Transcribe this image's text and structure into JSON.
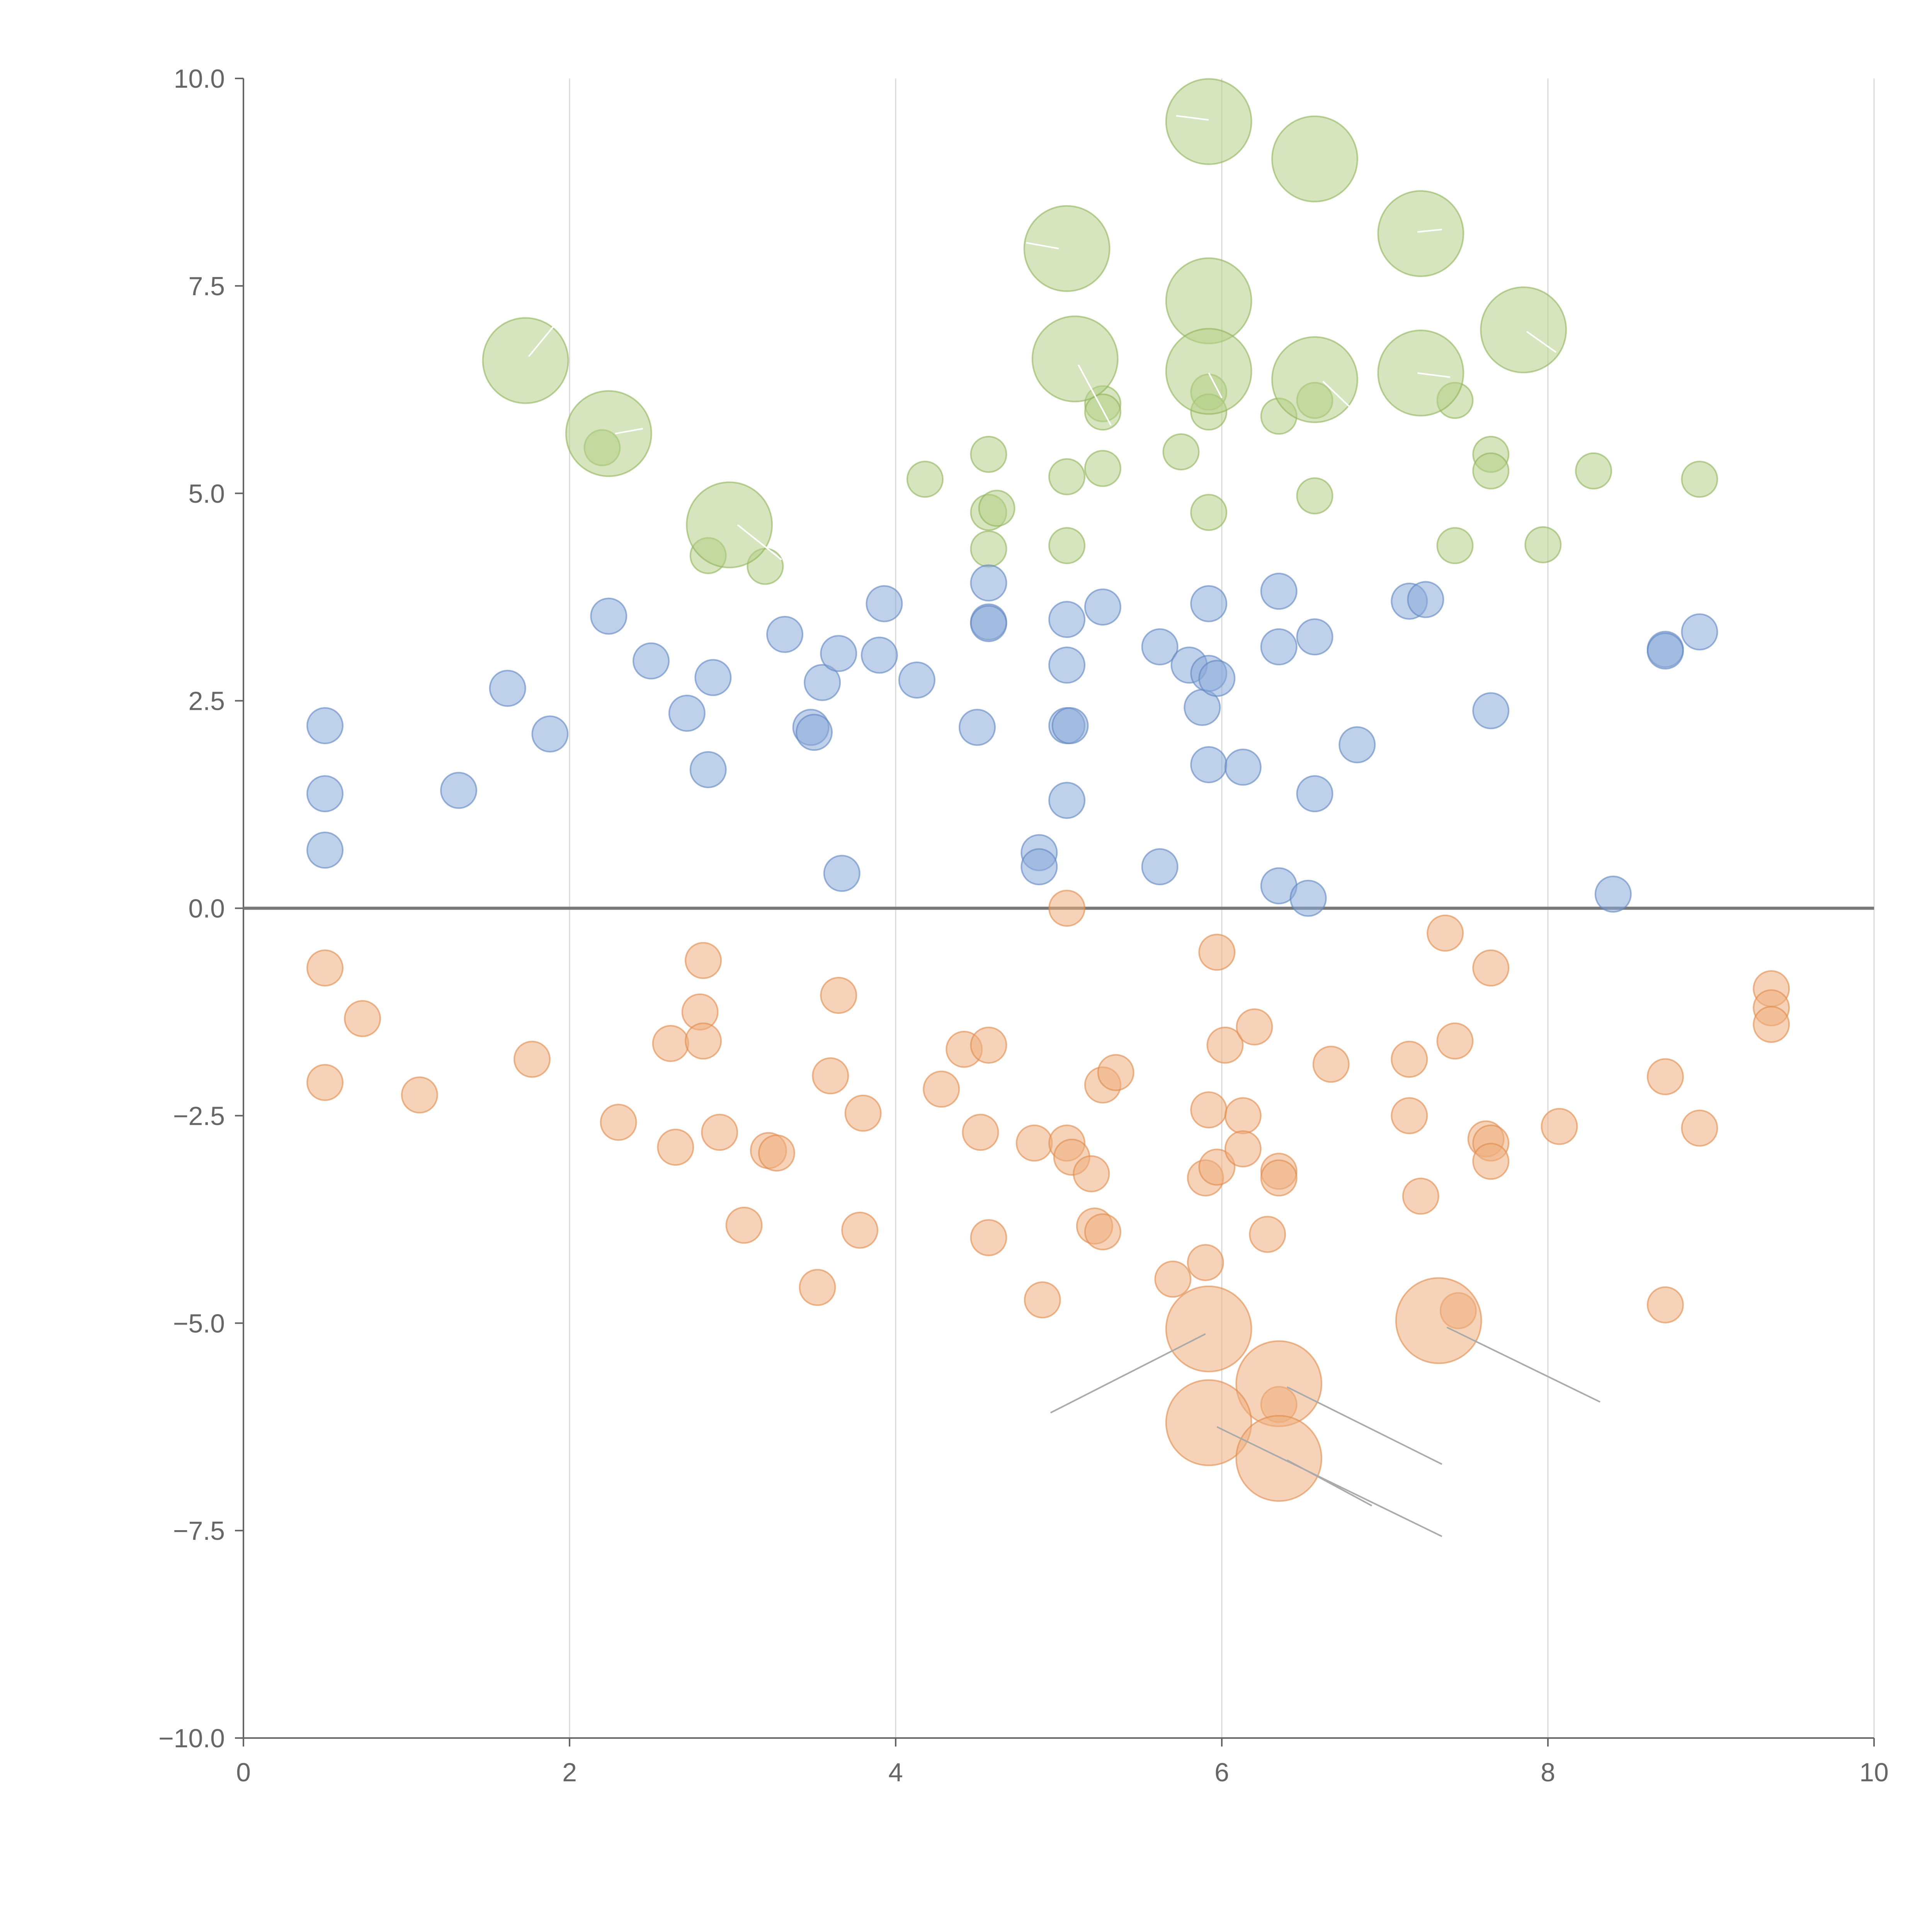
{
  "chart_data": {
    "type": "scatter",
    "title": "",
    "xlabel": "",
    "ylabel": "",
    "xlim": [
      0,
      10
    ],
    "ylim": [
      -10,
      10
    ],
    "x_ticks": [
      0,
      2,
      4,
      6,
      8,
      10
    ],
    "y_ticks": [
      10,
      7.5,
      5,
      2.5,
      0,
      -2.5,
      -5,
      -7.5,
      -10
    ],
    "x_tick_labels": [
      "0",
      "2",
      "4",
      "6",
      "8",
      "10"
    ],
    "y_tick_labels": [
      "10.0",
      "7.5",
      "5.0",
      "2.5",
      "0.0",
      "−2.5",
      "−5.0",
      "−7.5",
      "−10.0"
    ],
    "grid": "vertical",
    "zero_line": true,
    "colors": {
      "green_fill": "#b5cf87",
      "green_stroke": "#8fb35a",
      "blue_fill": "#8aaad8",
      "blue_stroke": "#5f86c0",
      "orange_fill": "#efae7d",
      "orange_stroke": "#e08a4b",
      "leader_light": "#ffffff",
      "leader_dark": "#aaaaaa"
    },
    "series": [
      {
        "name": "green",
        "color": "green",
        "points": [
          [
            2.2,
            5.55,
            1
          ],
          [
            2.85,
            4.25,
            1
          ],
          [
            3.2,
            4.12,
            1
          ],
          [
            4.18,
            5.17,
            1
          ],
          [
            4.57,
            5.47,
            1
          ],
          [
            4.57,
            4.77,
            1
          ],
          [
            4.62,
            4.82,
            1
          ],
          [
            4.57,
            4.33,
            1
          ],
          [
            5.05,
            5.2,
            1
          ],
          [
            5.05,
            4.37,
            1
          ],
          [
            5.27,
            6.08,
            1
          ],
          [
            5.27,
            5.98,
            1
          ],
          [
            5.27,
            5.3,
            1
          ],
          [
            5.75,
            5.5,
            1
          ],
          [
            5.92,
            6.22,
            1
          ],
          [
            5.92,
            5.98,
            1
          ],
          [
            5.92,
            4.77,
            1
          ],
          [
            6.35,
            5.93,
            1
          ],
          [
            6.57,
            6.12,
            1
          ],
          [
            6.57,
            4.97,
            1
          ],
          [
            7.43,
            6.12,
            1
          ],
          [
            7.43,
            4.37,
            1
          ],
          [
            7.65,
            5.47,
            1
          ],
          [
            7.65,
            5.27,
            1
          ],
          [
            7.97,
            4.38,
            1
          ],
          [
            8.28,
            5.27,
            1
          ],
          [
            8.93,
            5.17,
            1
          ],
          [
            5.92,
            9.48,
            2.4
          ],
          [
            6.57,
            9.03,
            2.4
          ],
          [
            5.05,
            7.95,
            2.4
          ],
          [
            7.22,
            8.13,
            2.4
          ],
          [
            5.92,
            7.32,
            2.4
          ],
          [
            7.85,
            6.97,
            2.4
          ],
          [
            1.73,
            6.6,
            2.4
          ],
          [
            5.1,
            6.62,
            2.4
          ],
          [
            5.92,
            6.47,
            2.4
          ],
          [
            6.57,
            6.37,
            2.4
          ],
          [
            7.22,
            6.45,
            2.4
          ],
          [
            2.24,
            5.72,
            2.4
          ],
          [
            2.98,
            4.62,
            2.4
          ]
        ]
      },
      {
        "name": "blue",
        "color": "blue",
        "points": [
          [
            0.5,
            2.2,
            1
          ],
          [
            0.5,
            1.38,
            1
          ],
          [
            0.5,
            0.7,
            1
          ],
          [
            1.32,
            1.42,
            1
          ],
          [
            1.62,
            2.65,
            1
          ],
          [
            1.88,
            2.1,
            1
          ],
          [
            2.24,
            3.52,
            1
          ],
          [
            2.5,
            2.98,
            1
          ],
          [
            2.72,
            2.35,
            1
          ],
          [
            2.85,
            1.67,
            1
          ],
          [
            2.88,
            2.78,
            1
          ],
          [
            3.32,
            3.3,
            1
          ],
          [
            3.48,
            2.18,
            1
          ],
          [
            3.5,
            2.12,
            1
          ],
          [
            3.55,
            2.72,
            1
          ],
          [
            3.65,
            3.07,
            1
          ],
          [
            3.67,
            0.42,
            1
          ],
          [
            3.9,
            3.05,
            1
          ],
          [
            3.93,
            3.67,
            1
          ],
          [
            4.13,
            2.75,
            1
          ],
          [
            4.5,
            2.18,
            1
          ],
          [
            4.57,
            3.92,
            1
          ],
          [
            4.57,
            3.45,
            1
          ],
          [
            4.57,
            3.43,
            1
          ],
          [
            4.88,
            0.67,
            1
          ],
          [
            4.88,
            0.5,
            1
          ],
          [
            5.05,
            3.48,
            1
          ],
          [
            5.05,
            2.93,
            1
          ],
          [
            5.05,
            2.2,
            1
          ],
          [
            5.07,
            2.2,
            1
          ],
          [
            5.05,
            1.3,
            1
          ],
          [
            5.27,
            3.63,
            1
          ],
          [
            5.62,
            3.15,
            1
          ],
          [
            5.62,
            0.5,
            1
          ],
          [
            5.8,
            2.93,
            1
          ],
          [
            5.88,
            2.42,
            1
          ],
          [
            5.92,
            3.67,
            1
          ],
          [
            5.92,
            2.83,
            1
          ],
          [
            5.97,
            2.77,
            1
          ],
          [
            5.92,
            1.73,
            1
          ],
          [
            6.13,
            1.7,
            1
          ],
          [
            6.35,
            3.82,
            1
          ],
          [
            6.35,
            3.15,
            1
          ],
          [
            6.35,
            0.27,
            1
          ],
          [
            6.53,
            0.12,
            1
          ],
          [
            6.57,
            3.27,
            1
          ],
          [
            6.57,
            1.38,
            1
          ],
          [
            6.83,
            1.97,
            1
          ],
          [
            7.15,
            3.7,
            1
          ],
          [
            7.25,
            3.72,
            1
          ],
          [
            7.65,
            2.38,
            1
          ],
          [
            8.4,
            0.17,
            1
          ],
          [
            8.72,
            3.12,
            1
          ],
          [
            8.72,
            3.1,
            1
          ],
          [
            8.93,
            3.33,
            1
          ]
        ]
      },
      {
        "name": "orange",
        "color": "orange",
        "points": [
          [
            0.5,
            -0.72,
            1
          ],
          [
            0.5,
            -2.1,
            1
          ],
          [
            0.73,
            -1.33,
            1
          ],
          [
            1.08,
            -2.25,
            1
          ],
          [
            1.77,
            -1.82,
            1
          ],
          [
            2.3,
            -2.58,
            1
          ],
          [
            2.62,
            -1.63,
            1
          ],
          [
            2.65,
            -2.88,
            1
          ],
          [
            2.8,
            -1.25,
            1
          ],
          [
            2.82,
            -0.63,
            1
          ],
          [
            2.82,
            -1.6,
            1
          ],
          [
            2.92,
            -2.7,
            1
          ],
          [
            3.07,
            -3.82,
            1
          ],
          [
            3.22,
            -2.92,
            1
          ],
          [
            3.27,
            -2.95,
            1
          ],
          [
            3.52,
            -4.57,
            1
          ],
          [
            3.6,
            -2.02,
            1
          ],
          [
            3.65,
            -1.05,
            1
          ],
          [
            3.78,
            -3.88,
            1
          ],
          [
            3.8,
            -2.47,
            1
          ],
          [
            4.28,
            -2.18,
            1
          ],
          [
            4.42,
            -1.7,
            1
          ],
          [
            4.52,
            -2.7,
            1
          ],
          [
            4.57,
            -1.65,
            1
          ],
          [
            4.57,
            -3.97,
            1
          ],
          [
            4.85,
            -2.83,
            1
          ],
          [
            4.9,
            -4.72,
            1
          ],
          [
            5.05,
            0.0,
            1
          ],
          [
            5.05,
            -2.83,
            1
          ],
          [
            5.08,
            -3.0,
            1
          ],
          [
            5.2,
            -3.2,
            1
          ],
          [
            5.22,
            -3.83,
            1
          ],
          [
            5.27,
            -3.9,
            1
          ],
          [
            5.27,
            -2.13,
            1
          ],
          [
            5.35,
            -1.98,
            1
          ],
          [
            5.7,
            -4.47,
            1
          ],
          [
            5.9,
            -4.27,
            1
          ],
          [
            5.9,
            -3.25,
            1
          ],
          [
            5.92,
            -2.43,
            1
          ],
          [
            5.97,
            -0.53,
            1
          ],
          [
            5.97,
            -3.12,
            1
          ],
          [
            6.02,
            -1.65,
            1
          ],
          [
            6.13,
            -2.5,
            1
          ],
          [
            6.13,
            -2.9,
            1
          ],
          [
            6.2,
            -1.43,
            1
          ],
          [
            6.28,
            -3.93,
            1
          ],
          [
            6.35,
            -3.17,
            1
          ],
          [
            6.35,
            -3.25,
            1
          ],
          [
            6.35,
            -5.98,
            1
          ],
          [
            6.67,
            -1.88,
            1
          ],
          [
            7.15,
            -1.82,
            1
          ],
          [
            7.15,
            -2.5,
            1
          ],
          [
            7.22,
            -3.47,
            1
          ],
          [
            7.37,
            -0.3,
            1
          ],
          [
            7.43,
            -1.6,
            1
          ],
          [
            7.45,
            -4.85,
            1
          ],
          [
            7.65,
            -0.72,
            1
          ],
          [
            7.62,
            -2.78,
            1
          ],
          [
            7.65,
            -2.83,
            1
          ],
          [
            7.65,
            -3.05,
            1
          ],
          [
            8.07,
            -2.63,
            1
          ],
          [
            8.72,
            -2.03,
            1
          ],
          [
            8.72,
            -4.78,
            1
          ],
          [
            8.93,
            -2.65,
            1
          ],
          [
            9.37,
            -0.97,
            1
          ],
          [
            9.37,
            -1.2,
            1
          ],
          [
            9.37,
            -1.4,
            1
          ],
          [
            5.92,
            -5.07,
            2.4
          ],
          [
            7.33,
            -4.97,
            2.4
          ],
          [
            6.35,
            -5.73,
            2.4
          ],
          [
            5.92,
            -6.2,
            2.4
          ],
          [
            6.35,
            -6.63,
            2.4
          ]
        ]
      }
    ],
    "leader_lines": [
      {
        "color": "leader_light",
        "from": [
          1.75,
          6.65
        ],
        "to": [
          1.98,
          7.2
        ]
      },
      {
        "color": "leader_light",
        "from": [
          2.28,
          5.72
        ],
        "to": [
          2.45,
          5.78
        ]
      },
      {
        "color": "leader_light",
        "from": [
          3.03,
          4.62
        ],
        "to": [
          3.3,
          4.2
        ]
      },
      {
        "color": "leader_light",
        "from": [
          4.8,
          8.02
        ],
        "to": [
          5.0,
          7.95
        ]
      },
      {
        "color": "leader_light",
        "from": [
          5.12,
          6.55
        ],
        "to": [
          5.32,
          5.82
        ]
      },
      {
        "color": "leader_light",
        "from": [
          5.72,
          9.55
        ],
        "to": [
          5.92,
          9.5
        ]
      },
      {
        "color": "leader_light",
        "from": [
          5.92,
          6.45
        ],
        "to": [
          6.0,
          6.15
        ]
      },
      {
        "color": "leader_light",
        "from": [
          6.62,
          6.35
        ],
        "to": [
          6.78,
          6.05
        ]
      },
      {
        "color": "leader_light",
        "from": [
          7.2,
          8.15
        ],
        "to": [
          7.35,
          8.18
        ]
      },
      {
        "color": "leader_light",
        "from": [
          7.2,
          6.45
        ],
        "to": [
          7.4,
          6.4
        ]
      },
      {
        "color": "leader_light",
        "from": [
          7.87,
          6.95
        ],
        "to": [
          8.05,
          6.7
        ]
      },
      {
        "color": "leader_dark",
        "from": [
          5.9,
          -5.13
        ],
        "to": [
          4.95,
          -6.08
        ]
      },
      {
        "color": "leader_dark",
        "from": [
          7.38,
          -5.05
        ],
        "to": [
          8.32,
          -5.95
        ]
      },
      {
        "color": "leader_dark",
        "from": [
          6.4,
          -5.77
        ],
        "to": [
          7.35,
          -6.7
        ]
      },
      {
        "color": "leader_dark",
        "from": [
          5.97,
          -6.25
        ],
        "to": [
          7.35,
          -7.57
        ]
      },
      {
        "color": "leader_dark",
        "from": [
          6.4,
          -6.65
        ],
        "to": [
          6.92,
          -7.2
        ]
      }
    ]
  }
}
